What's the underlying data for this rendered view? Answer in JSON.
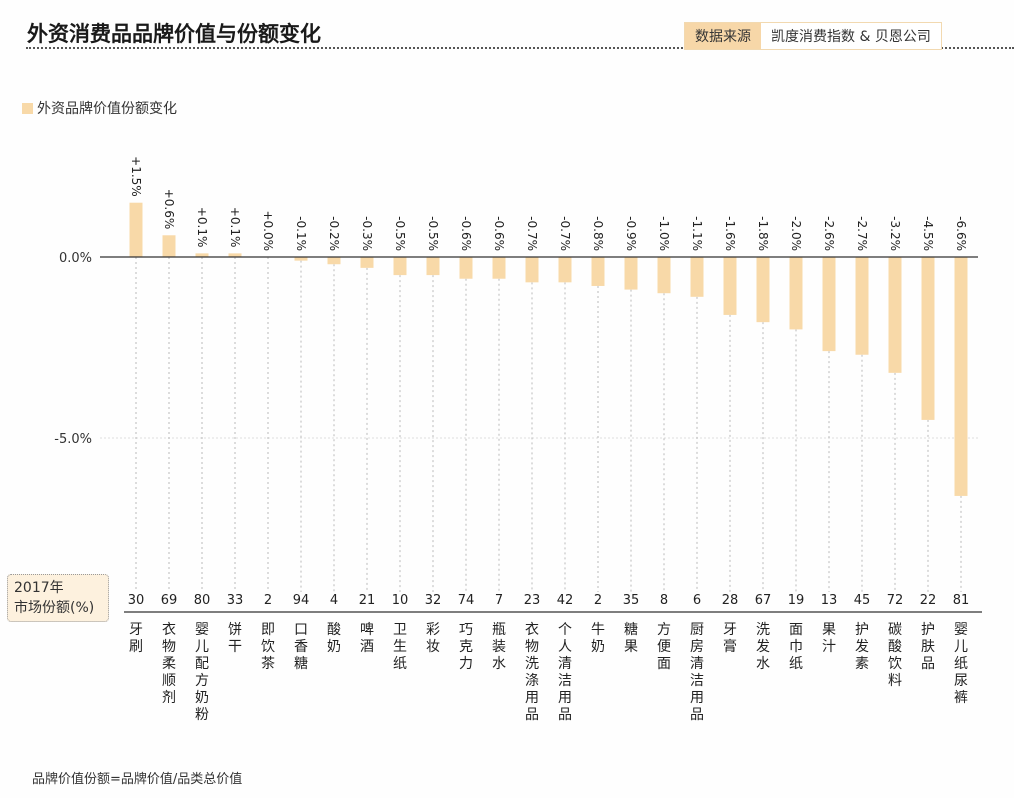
{
  "title": "外资消费品品牌价值与份额变化",
  "source": {
    "label": "数据来源",
    "value": "凯度消费指数 & 贝恩公司"
  },
  "footnote": "品牌价值份额=品牌价值/品类总价值",
  "share_box": {
    "line1": "2017年",
    "line2": "市场份额(%)"
  },
  "colors": {
    "bar": "#f8d9a8",
    "axis": "#333333"
  },
  "chart_data": {
    "type": "bar",
    "legend": "外资品牌价值份额变化",
    "legend_position": "top-left",
    "categories": [
      "牙刷",
      "衣物柔顺剂",
      "婴儿配方奶粉",
      "饼干",
      "即饮茶",
      "口香糖",
      "酸奶",
      "啤酒",
      "卫生纸",
      "彩妆",
      "巧克力",
      "瓶装水",
      "衣物洗涤用品",
      "个人清洁用品",
      "牛奶",
      "糖果",
      "方便面",
      "厨房清洁用品",
      "牙膏",
      "洗发水",
      "面巾纸",
      "果汁",
      "护发素",
      "碳酸饮料",
      "护肤品",
      "婴儿纸尿裤"
    ],
    "values": [
      1.5,
      0.6,
      0.1,
      0.1,
      0.0,
      -0.1,
      -0.2,
      -0.3,
      -0.5,
      -0.5,
      -0.6,
      -0.6,
      -0.7,
      -0.7,
      -0.8,
      -0.9,
      -1.0,
      -1.1,
      -1.6,
      -1.8,
      -2.0,
      -2.6,
      -2.7,
      -3.2,
      -4.5,
      -6.6
    ],
    "data_labels": [
      "+1.5%",
      "+0.6%",
      "+0.1%",
      "+0.1%",
      "+0.0%",
      "-0.1%",
      "-0.2%",
      "-0.3%",
      "-0.5%",
      "-0.5%",
      "-0.6%",
      "-0.6%",
      "-0.7%",
      "-0.7%",
      "-0.8%",
      "-0.9%",
      "-1.0%",
      "-1.1%",
      "-1.6%",
      "-1.8%",
      "-2.0%",
      "-2.6%",
      "-2.7%",
      "-3.2%",
      "-4.5%",
      "-6.6%"
    ],
    "market_share_2017": [
      30,
      69,
      80,
      33,
      2,
      94,
      4,
      21,
      10,
      32,
      74,
      7,
      23,
      42,
      2,
      35,
      8,
      6,
      28,
      67,
      19,
      13,
      45,
      72,
      22,
      81
    ],
    "yticks": [
      {
        "value": 0,
        "label": "0.0%"
      },
      {
        "value": -5,
        "label": "-5.0%"
      }
    ],
    "grid": true
  }
}
